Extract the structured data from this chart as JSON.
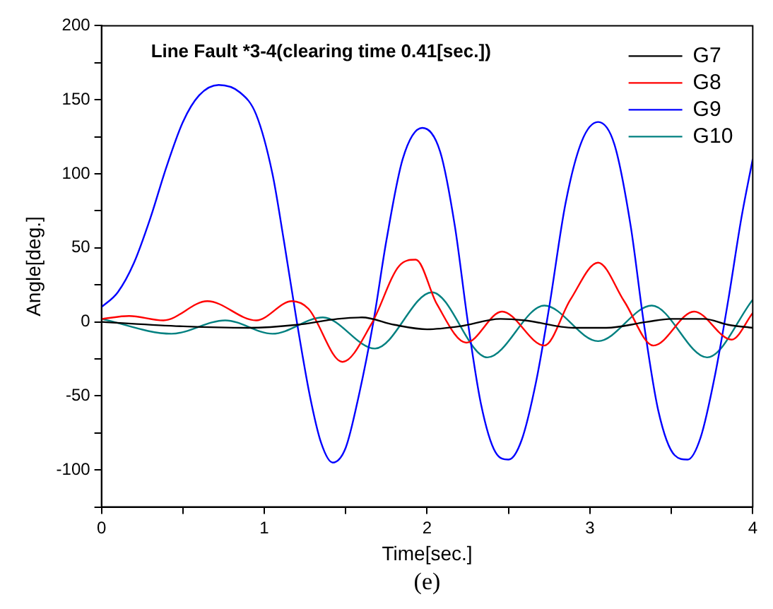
{
  "chart_data": {
    "type": "line",
    "title": "Line Fault *3-4(clearing time 0.41[sec.])",
    "xlabel": "Time[sec.]",
    "ylabel": "Angle[deg.]",
    "annotations": [
      "(e)"
    ],
    "xlim": [
      0,
      4
    ],
    "xticks": [
      0,
      {
        "value": 0.5,
        "label": null
      },
      1,
      {
        "value": 1.5,
        "label": null
      },
      2,
      {
        "value": 2.5,
        "label": null
      },
      3,
      {
        "value": 3.5,
        "label": null
      },
      4
    ],
    "ylim": [
      -125,
      200
    ],
    "yticks": [
      {
        "value": -125,
        "label": null
      },
      -100,
      {
        "value": -75,
        "label": null
      },
      -50,
      {
        "value": -25,
        "label": null
      },
      0,
      {
        "value": 25,
        "label": null
      },
      50,
      {
        "value": 75,
        "label": null
      },
      100,
      {
        "value": 125,
        "label": null
      },
      150,
      {
        "value": 175,
        "label": null
      },
      200
    ],
    "grid": false,
    "legend": "top right",
    "marker": "none",
    "line_style": "solid",
    "series": [
      {
        "name": "G7",
        "color": "#000000",
        "x": [
          0,
          0.5,
          0.9,
          1.2,
          1.45,
          1.6,
          1.8,
          2.0,
          2.2,
          2.45,
          2.6,
          2.9,
          3.1,
          3.35,
          3.5,
          3.7,
          3.85,
          4.0
        ],
        "values": [
          0,
          -3,
          -4,
          -2,
          2,
          3,
          -2,
          -5,
          -3,
          2,
          1,
          -4,
          -4,
          0,
          2,
          2,
          -2,
          -4
        ]
      },
      {
        "name": "G8",
        "color": "#ff0000",
        "x": [
          0,
          0.17,
          0.38,
          0.65,
          0.95,
          1.17,
          1.27,
          1.48,
          1.66,
          1.83,
          1.93,
          2.06,
          2.24,
          2.46,
          2.72,
          2.88,
          3.05,
          3.21,
          3.39,
          3.64,
          3.87,
          4.0
        ],
        "values": [
          2,
          4,
          1,
          14,
          1,
          14,
          9,
          -27,
          -1,
          38,
          42,
          12,
          -14,
          7,
          -16,
          15,
          40,
          14,
          -16,
          7,
          -12,
          6
        ]
      },
      {
        "name": "G9",
        "color": "#0000ff",
        "x": [
          0,
          0.1,
          0.2,
          0.3,
          0.4,
          0.5,
          0.6,
          0.72,
          0.85,
          0.95,
          1.05,
          1.12,
          1.2,
          1.28,
          1.35,
          1.42,
          1.5,
          1.58,
          1.67,
          1.75,
          1.85,
          1.97,
          2.08,
          2.17,
          2.25,
          2.33,
          2.42,
          2.5,
          2.58,
          2.67,
          2.75,
          2.85,
          2.95,
          3.05,
          3.15,
          3.25,
          3.33,
          3.42,
          3.52,
          3.6,
          3.68,
          3.77,
          3.85,
          3.93,
          4.0
        ],
        "values": [
          10,
          20,
          40,
          70,
          105,
          135,
          153,
          160,
          155,
          140,
          100,
          55,
          0,
          -50,
          -82,
          -95,
          -85,
          -50,
          0,
          55,
          110,
          131,
          115,
          65,
          0,
          -55,
          -88,
          -93,
          -80,
          -40,
          10,
          80,
          122,
          135,
          120,
          65,
          0,
          -60,
          -90,
          -93,
          -78,
          -35,
          15,
          70,
          110
        ]
      },
      {
        "name": "G10",
        "color": "#008080",
        "x": [
          0,
          0.43,
          0.76,
          1.05,
          1.36,
          1.68,
          2.03,
          2.37,
          2.72,
          3.05,
          3.38,
          3.72,
          4.0
        ],
        "values": [
          2,
          -8,
          1,
          -8,
          3,
          -18,
          20,
          -24,
          11,
          -13,
          11,
          -24,
          15
        ]
      }
    ]
  }
}
